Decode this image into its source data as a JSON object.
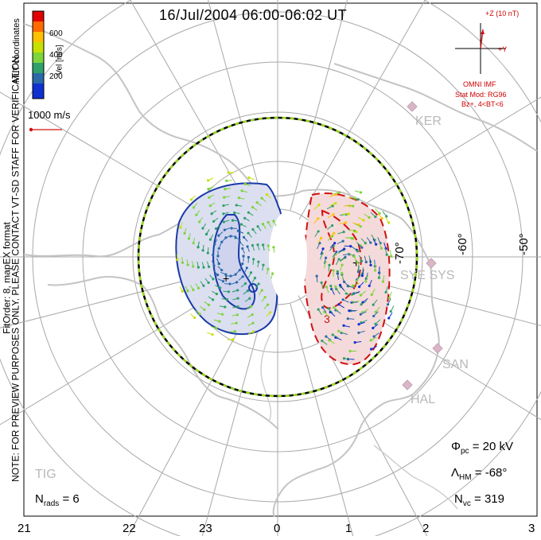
{
  "title": "16/Jul/2004 06:00-06:02 UT",
  "side_note": {
    "line1": "NOTE: FOR PREVIEW PURPOSES ONLY. PLEASE CONTACT VT-SD STAFF FOR VERIFICATION.",
    "line2": "FitOrder: 8, mapEX format"
  },
  "colorbar": {
    "title": "MLT coordinates",
    "unit_label": "Vel [m/s]",
    "ticks": [
      "600",
      "400",
      "200"
    ],
    "colors": [
      "#e00000",
      "#ff6a00",
      "#ffc000",
      "#c8e000",
      "#7ed43c",
      "#2fa06a",
      "#2a6aa8",
      "#1030d0"
    ]
  },
  "scale_vector": "1000 m/s",
  "imf": {
    "z_label": "+Z (10 nT)",
    "y_label": "+Y",
    "source": "OMNI IMF",
    "model": "Stat Mod: RG96",
    "condition": "Bz+, 4<BT<6"
  },
  "sites": [
    "KER",
    "SYE SYS",
    "SAN",
    "HAL",
    "TIG"
  ],
  "latitude_labels": [
    "-70°",
    "-60°",
    "-50°"
  ],
  "mlt_axis": [
    "21",
    "22",
    "23",
    "0",
    "1",
    "2",
    "3"
  ],
  "stats": {
    "phi_pc_symbol": "Φ",
    "phi_pc_sub": "pc",
    "phi_pc_value": "= 20 kV",
    "lambda_symbol": "Λ",
    "lambda_sub": "HM",
    "lambda_value": "= -68°",
    "nvc_symbol": "N",
    "nvc_sub": "vc",
    "nvc_value": "= 319",
    "nrads_symbol": "N",
    "nrads_sub": "rads",
    "nrads_value": "= 6"
  },
  "colors": {
    "negative_cell": "#1a3aa8",
    "positive_cell": "#d01010",
    "coastline": "#c8c8c8",
    "grid": "#9a9a9a",
    "site_marker": "#d8b8c8"
  }
}
